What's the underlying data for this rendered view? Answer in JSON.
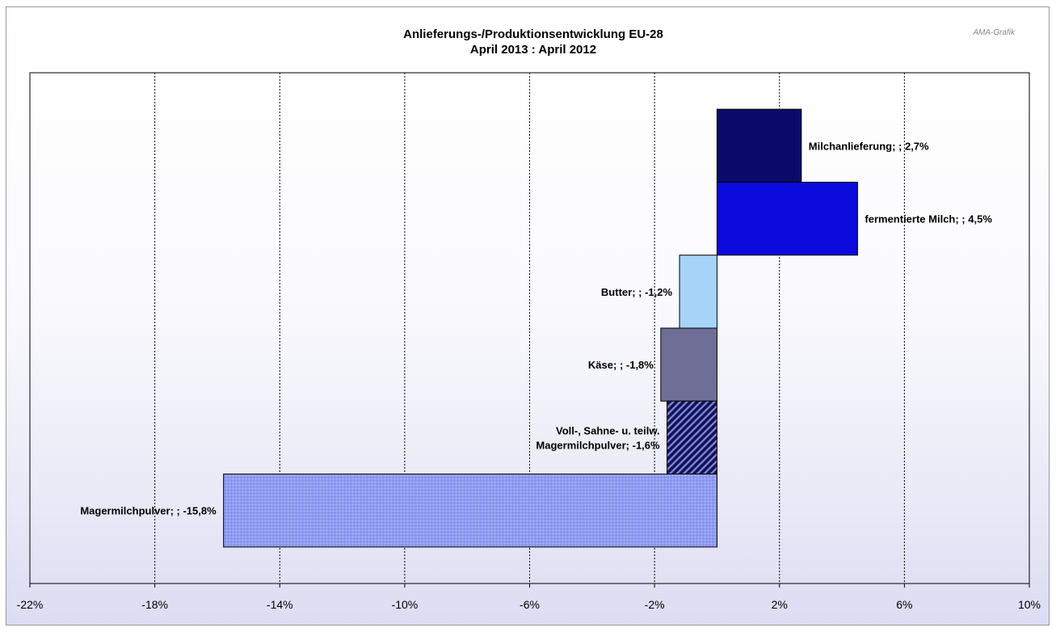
{
  "watermark": "AMA-Grafik",
  "chart_data": {
    "type": "bar",
    "orientation": "horizontal",
    "title": "Anlieferungs-/Produktionsentwicklung EU-28",
    "subtitle": "April 2013 : April 2012",
    "xlim": [
      -22,
      10
    ],
    "x_ticks": [
      -22,
      -18,
      -14,
      -10,
      -6,
      -2,
      2,
      6,
      10
    ],
    "x_tick_labels": [
      "-22%",
      "-18%",
      "-14%",
      "-10%",
      "-6%",
      "-2%",
      "2%",
      "6%",
      "10%"
    ],
    "grid": "vertical dashed",
    "legend": "none",
    "bars": [
      {
        "category": "Milchanlieferung",
        "value": 2.7,
        "label_lines": [
          "Milchanlieferung; ; 2,7%"
        ],
        "color": "#0a0a6b",
        "pattern": "solid"
      },
      {
        "category": "fermentierte Milch",
        "value": 4.5,
        "label_lines": [
          "fermentierte Milch; ; 4,5%"
        ],
        "color": "#0a0adc",
        "pattern": "solid"
      },
      {
        "category": "Butter",
        "value": -1.2,
        "label_lines": [
          "Butter; ; -1,2%"
        ],
        "color": "#a6d4f7",
        "pattern": "solid"
      },
      {
        "category": "Käse",
        "value": -1.8,
        "label_lines": [
          "Käse; ; -1,8%"
        ],
        "color": "#6e6e96",
        "pattern": "solid"
      },
      {
        "category": "Voll-, Sahne- u. teilw. Magermilchpulver",
        "value": -1.6,
        "label_lines": [
          "Voll-,  Sahne- u. teilw.",
          "Magermilchpulver; -1,6%"
        ],
        "color": "#1a1a6e",
        "pattern": "diagonal-hatch"
      },
      {
        "category": "Magermilchpulver",
        "value": -15.8,
        "label_lines": [
          "Magermilchpulver; ; -15,8%"
        ],
        "color": "#8e9bf0",
        "pattern": "fine-dots"
      }
    ]
  }
}
